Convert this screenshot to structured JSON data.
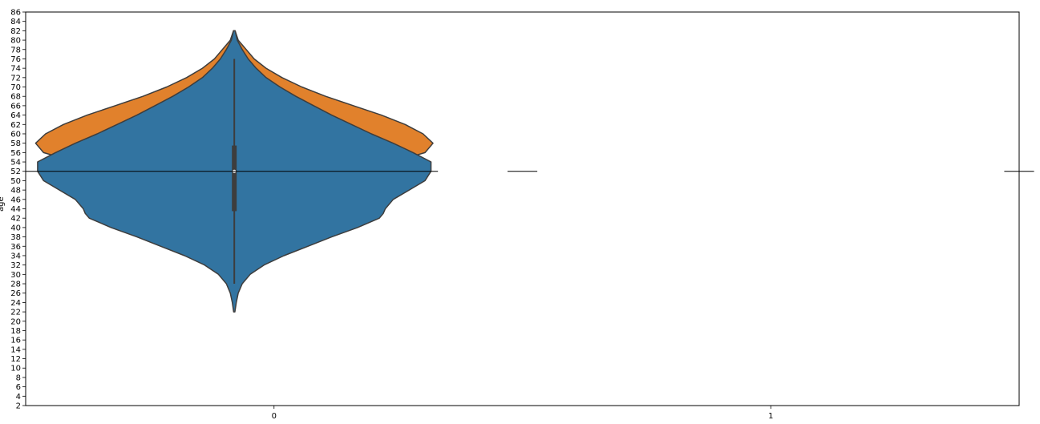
{
  "chart_data": {
    "type": "violin",
    "title": "",
    "xlabel": "",
    "ylabel": "age",
    "categories": [
      "0",
      "1"
    ],
    "ylim": [
      2,
      86
    ],
    "yticks": [
      2,
      4,
      6,
      8,
      10,
      12,
      14,
      16,
      18,
      20,
      22,
      24,
      26,
      28,
      30,
      32,
      34,
      36,
      38,
      40,
      42,
      44,
      46,
      48,
      50,
      52,
      54,
      56,
      58,
      60,
      62,
      64,
      66,
      68,
      70,
      72,
      74,
      76,
      78,
      80,
      82,
      84,
      86
    ],
    "grid": false,
    "legend": "none",
    "series": [
      {
        "color": "#e1812c",
        "profile": [
          [
            82,
            0.004
          ],
          [
            80,
            0.02
          ],
          [
            78,
            0.06
          ],
          [
            76,
            0.1
          ],
          [
            74,
            0.16
          ],
          [
            72,
            0.24
          ],
          [
            70,
            0.34
          ],
          [
            68,
            0.46
          ],
          [
            66,
            0.6
          ],
          [
            64,
            0.74
          ],
          [
            62,
            0.86
          ],
          [
            60,
            0.95
          ],
          [
            58,
            1.0
          ],
          [
            56,
            0.96
          ],
          [
            54,
            0.8
          ],
          [
            53,
            0.6
          ],
          [
            52.5,
            0.3
          ],
          [
            52,
            0.0
          ]
        ]
      },
      {
        "color": "#3274a1",
        "profile": [
          [
            82,
            0.004
          ],
          [
            80,
            0.015
          ],
          [
            78,
            0.04
          ],
          [
            76,
            0.07
          ],
          [
            74,
            0.11
          ],
          [
            72,
            0.16
          ],
          [
            70,
            0.23
          ],
          [
            68,
            0.31
          ],
          [
            66,
            0.4
          ],
          [
            64,
            0.49
          ],
          [
            62,
            0.59
          ],
          [
            60,
            0.69
          ],
          [
            58,
            0.8
          ],
          [
            56,
            0.9
          ],
          [
            54,
            0.99
          ],
          [
            52,
            0.99
          ],
          [
            50,
            0.96
          ],
          [
            48,
            0.88
          ],
          [
            46,
            0.8
          ],
          [
            44,
            0.76
          ],
          [
            43,
            0.75
          ],
          [
            42,
            0.73
          ],
          [
            40,
            0.62
          ],
          [
            38,
            0.49
          ],
          [
            36,
            0.37
          ],
          [
            34,
            0.25
          ],
          [
            32,
            0.15
          ],
          [
            30,
            0.08
          ],
          [
            28,
            0.04
          ],
          [
            26,
            0.02
          ],
          [
            24,
            0.01
          ],
          [
            22,
            0.003
          ]
        ]
      }
    ],
    "box": {
      "whisker_low": 28,
      "q1": 43.5,
      "median": 52,
      "q3": 57.5,
      "whisker_high": 76,
      "color": "#3d3d3d"
    },
    "hline": {
      "y": 52,
      "segments": [
        [
          -0.5,
          0.33
        ],
        [
          0.47,
          0.53
        ],
        [
          1.47,
          1.53
        ]
      ]
    },
    "violin_center_x": -0.08,
    "violin_half_width_x": 0.4
  }
}
